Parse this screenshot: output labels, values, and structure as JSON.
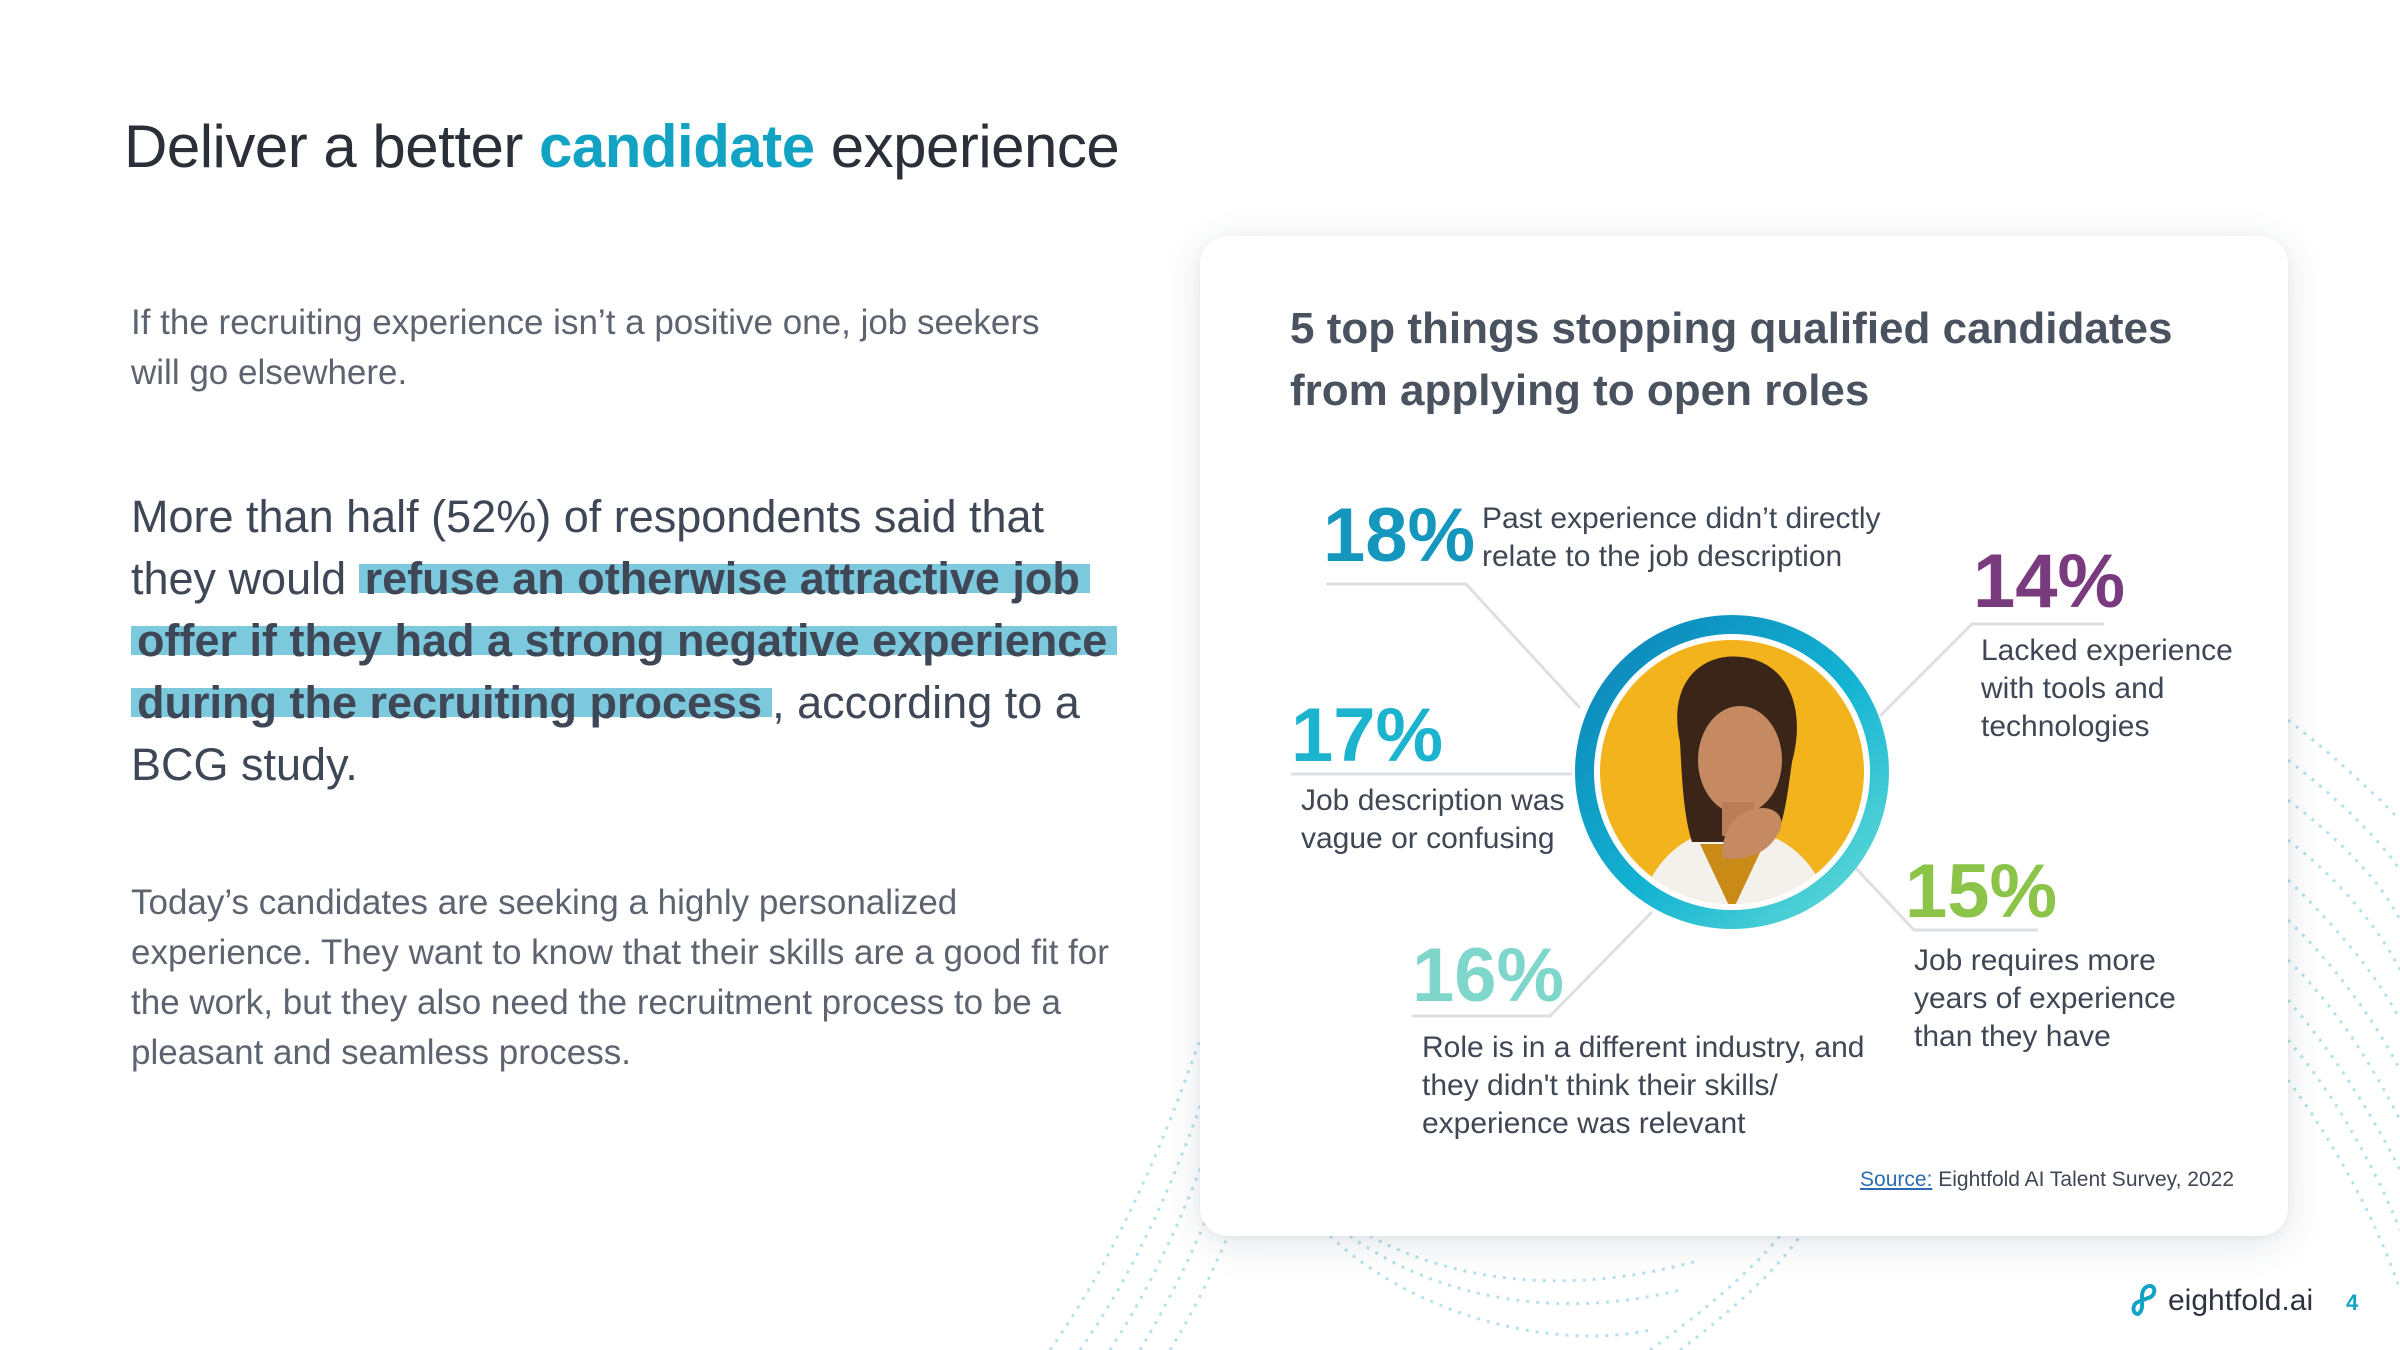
{
  "slide": {
    "title_pre": "Deliver a better ",
    "title_accent": "candidate",
    "title_post": " experience",
    "intro": "If the recruiting experience isn’t a positive one, job seekers will go elsewhere.",
    "stat_pre": "More than half (52%) of respondents said that they would ",
    "stat_highlight": "refuse an otherwise attractive job offer if they had a strong negative experience during the recruiting process",
    "stat_post": ", according to a BCG study.",
    "body": "Today’s candidates are seeking a highly personalized experience. They want to know that their skills are a good fit for the work, but they also need the recruitment process to be a pleasant and seamless process.",
    "page_number": "4"
  },
  "card": {
    "title": "5 top things stopping qualified candidates from applying to open roles",
    "items": [
      {
        "percent": "18%",
        "text": "Past experience didn’t directly relate to the job description",
        "color": "#1597bd"
      },
      {
        "percent": "14%",
        "text": "Lacked experience with tools and technologies",
        "color": "#7a3a7e"
      },
      {
        "percent": "17%",
        "text": "Job description was vague or confusing",
        "color": "#1cb3cf"
      },
      {
        "percent": "15%",
        "text": "Job requires more years of experience than they have",
        "color": "#8cc44a"
      },
      {
        "percent": "16%",
        "text": "Role is in a different industry, and they didn't think their skills/ experience was relevant",
        "color": "#7fd6cb"
      }
    ],
    "source_label": "Source:",
    "source_text": " Eightfold AI Talent Survey, 2022"
  },
  "brand": {
    "logo_text": "eightfold.ai",
    "accent_color": "#12a3c4"
  }
}
